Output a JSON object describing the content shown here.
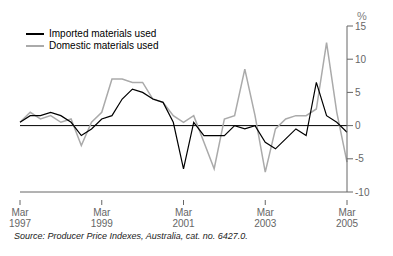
{
  "chart_data": {
    "type": "line",
    "ylabel": "%",
    "annotations": [
      "Source: Producer Price Indexes, Australia, cat. no. 6427.0."
    ],
    "categories": [
      "Mar\n1997",
      null,
      null,
      null,
      null,
      null,
      null,
      null,
      "Mar\n1999",
      null,
      null,
      null,
      null,
      null,
      null,
      null,
      "Mar\n2001",
      null,
      null,
      null,
      null,
      null,
      null,
      null,
      "Mar\n2003",
      null,
      null,
      null,
      null,
      null,
      null,
      null,
      "Mar\n2005"
    ],
    "series": [
      {
        "name": "Imported materials used",
        "color": "#000000",
        "values": [
          0.5,
          1.5,
          1.5,
          2.0,
          1.5,
          0.5,
          -1.5,
          -0.5,
          1.0,
          1.5,
          4.0,
          5.5,
          5.0,
          4.0,
          3.5,
          0.5,
          -6.5,
          0.5,
          -1.5,
          -1.5,
          -1.5,
          0.0,
          -0.5,
          0.0,
          -2.5,
          -3.5,
          -2.0,
          -0.5,
          -1.5,
          6.5,
          1.5,
          0.5,
          -1.0
        ]
      },
      {
        "name": "Domestic materials used",
        "color": "#aaaaaa",
        "values": [
          0.5,
          2.0,
          1.0,
          1.5,
          0.5,
          1.0,
          -3.0,
          0.5,
          2.0,
          7.0,
          7.0,
          6.5,
          6.5,
          4.0,
          3.5,
          1.5,
          0.5,
          1.5,
          -2.5,
          -6.5,
          1.0,
          1.5,
          8.5,
          1.5,
          -7.0,
          -0.5,
          1.0,
          1.5,
          1.5,
          2.5,
          12.5,
          2.0,
          -5.5
        ]
      }
    ],
    "ylim": [
      -10,
      15
    ],
    "yticks": [
      -10,
      -5,
      0,
      5,
      10,
      15
    ],
    "grid": false,
    "legend": "upper left"
  }
}
